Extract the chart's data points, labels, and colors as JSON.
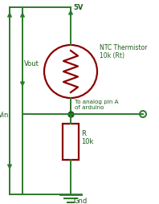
{
  "bg_color": "#ffffff",
  "wire_color": "#2d7a2d",
  "resistor_color": "#8b0000",
  "dot_color": "#1a5c1a",
  "label_5v": "5V",
  "label_vout": "Vout",
  "label_vin": "Vin",
  "label_gnd": "Gnd",
  "label_ntc": "NTC Thermistor\n10k (Rt)",
  "label_r": "R\n10k",
  "label_analog": "To analog pin A\nof arduino",
  "figsize": [
    1.98,
    2.55
  ],
  "dpi": 100
}
